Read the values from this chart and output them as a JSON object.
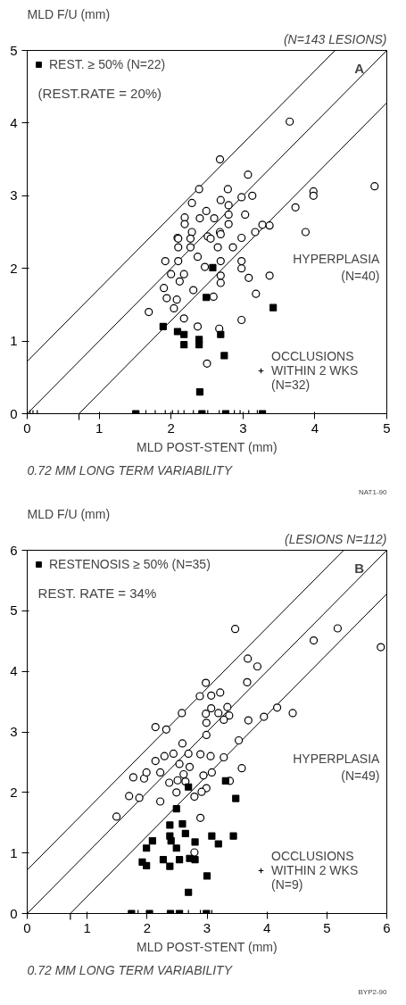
{
  "chart_data": [
    {
      "type": "scatter",
      "title": "A",
      "subtitle": "(N=143 LESIONS)",
      "ylabel": "MLD F/U (mm)",
      "xlabel": "MLD POST-STENT (mm)",
      "xlim": [
        0,
        5
      ],
      "ylim": [
        0,
        5
      ],
      "xticks": [
        0,
        1,
        2,
        3,
        4,
        5
      ],
      "yticks": [
        0,
        1,
        2,
        3,
        4,
        5
      ],
      "grid": false,
      "legend": "top left",
      "annotations": [
        "(REST.RATE = 20%)",
        {
          "text": "0.72 MM LONG TERM VARIABILITY",
          "x": 0.72,
          "y": 0
        },
        "NAT1-90"
      ],
      "series": [
        {
          "type": "line",
          "color": "#000000",
          "x": [
            0,
            4.28
          ],
          "values": [
            0.72,
            5
          ]
        },
        {
          "type": "line",
          "color": "#000000",
          "x": [
            0,
            5
          ],
          "values": [
            0,
            5
          ]
        },
        {
          "type": "line",
          "color": "#000000",
          "x": [
            0.72,
            5
          ],
          "values": [
            0,
            4.28
          ]
        },
        {
          "name": "HYPERPLASIA\n(N=40)",
          "marker": "circle",
          "color": "#000000",
          "x": [
            3.65,
            2.68,
            2.39,
            3.07,
            2.79,
            2.29,
            2.69,
            2.98,
            3.13,
            3.98,
            3.98,
            4.83,
            3.73,
            2.49,
            2.8,
            2.19,
            2.4,
            2.6,
            2.8,
            3.03,
            2.19,
            2.8,
            2.68,
            2.29,
            3.27,
            3.37,
            3.17,
            3.87,
            2.09,
            2.98,
            2.51,
            2.1,
            2.27,
            2.55,
            2.69,
            2.1,
            2.27,
            2.65,
            1.92,
            2.1,
            2.37,
            2.47,
            2.69,
            2.86,
            2.98,
            2.98,
            3.08,
            3.37,
            2.0,
            2.18,
            2.69,
            1.9,
            2.12,
            2.31,
            2.69,
            1.94,
            2.08,
            2.59,
            3.18,
            2.04,
            1.69,
            2.18,
            2.98,
            2.37,
            2.67,
            2.5
          ],
          "values": [
            4.02,
            3.5,
            3.09,
            3.29,
            3.09,
            2.9,
            2.94,
            2.98,
            3.0,
            3.06,
            3.0,
            3.13,
            2.84,
            2.79,
            2.87,
            2.7,
            2.69,
            2.69,
            2.74,
            2.74,
            2.61,
            2.61,
            2.5,
            2.5,
            2.6,
            2.59,
            2.5,
            2.5,
            2.42,
            2.42,
            2.44,
            2.41,
            2.41,
            2.41,
            2.47,
            2.29,
            2.29,
            2.29,
            2.1,
            2.1,
            2.16,
            2.02,
            2.1,
            2.29,
            2.1,
            2.0,
            1.87,
            1.9,
            1.92,
            1.92,
            1.9,
            1.73,
            1.82,
            1.7,
            1.8,
            1.59,
            1.57,
            1.61,
            1.65,
            1.45,
            1.4,
            1.31,
            1.29,
            1.2,
            1.17,
            0.69
          ]
        },
        {
          "name": "REST. ≥ 50% (N=22)",
          "marker": "square",
          "color": "#000000",
          "x": [
            2.49,
            2.58,
            1.89,
            2.09,
            2.18,
            2.18,
            2.39,
            2.39,
            2.69,
            2.74,
            2.4,
            3.42,
            1.51,
            2.43,
            2.76,
            3.27
          ],
          "values": [
            1.6,
            2.01,
            1.2,
            1.13,
            1.09,
            0.95,
            1.02,
            0.95,
            1.09,
            0.8,
            0.3,
            1.46,
            0,
            0,
            0,
            0
          ]
        },
        {
          "name": "OCCLUSIONS\nWITHIN 2 WKS\n(N=32)",
          "marker": "cross",
          "color": "#000000",
          "x": [
            0.04,
            0.08,
            0.14,
            1.65,
            1.78,
            1.92,
            2.02,
            2.1,
            2.18,
            2.31,
            2.51,
            2.67,
            2.88,
            2.96,
            3.08,
            3.2
          ],
          "values": [
            0,
            0,
            0,
            0,
            0,
            0,
            0,
            0,
            0,
            0,
            0,
            0,
            0,
            0,
            0,
            0
          ]
        }
      ]
    },
    {
      "type": "scatter",
      "title": "B",
      "subtitle": "(LESIONS N=112)",
      "ylabel": "MLD F/U (mm)",
      "xlabel": "MLD POST-STENT (mm)",
      "xlim": [
        0,
        6
      ],
      "ylim": [
        0,
        6
      ],
      "xticks": [
        0,
        1,
        2,
        3,
        4,
        5,
        6
      ],
      "yticks": [
        0,
        1,
        2,
        3,
        4,
        5,
        6
      ],
      "grid": false,
      "legend": "top left",
      "annotations": [
        "REST. RATE = 34%",
        {
          "text": "0.72 MM LONG TERM VARIABILITY",
          "x": 0.72,
          "y": 0
        },
        "BYP2-90"
      ],
      "series": [
        {
          "type": "line",
          "color": "#000000",
          "x": [
            0,
            5.28
          ],
          "values": [
            0.72,
            6
          ]
        },
        {
          "type": "line",
          "color": "#000000",
          "x": [
            0,
            6
          ],
          "values": [
            0,
            6
          ]
        },
        {
          "type": "line",
          "color": "#000000",
          "x": [
            0.72,
            6
          ],
          "values": [
            0,
            5.28
          ]
        },
        {
          "name": "HYPERPLASIA\n(N=49)",
          "marker": "circle",
          "color": "#000000",
          "x": [
            3.47,
            4.78,
            5.18,
            5.9,
            3.68,
            3.84,
            3.67,
            2.98,
            2.88,
            3.07,
            3.22,
            2.58,
            2.98,
            3.07,
            3.19,
            3.34,
            3.37,
            3.28,
            3.69,
            3.95,
            4.17,
            4.43,
            2.99,
            2.99,
            2.14,
            2.32,
            3.53,
            2.59,
            2.29,
            2.14,
            2.44,
            2.69,
            2.89,
            3.06,
            3.28,
            3.58,
            1.77,
            1.95,
            1.99,
            2.22,
            2.37,
            2.51,
            2.61,
            2.71,
            2.94,
            3.08,
            3.38,
            2.99,
            2.91,
            2.49,
            2.79,
            1.7,
            1.87,
            2.22,
            1.49,
            2.89,
            2.79,
            2.64,
            2.54
          ],
          "values": [
            4.7,
            4.51,
            4.71,
            4.4,
            4.21,
            4.08,
            3.82,
            3.81,
            3.59,
            3.6,
            3.65,
            3.31,
            3.3,
            3.39,
            3.31,
            3.41,
            3.27,
            3.2,
            3.19,
            3.25,
            3.4,
            3.31,
            3.15,
            2.95,
            3.08,
            3.04,
            2.86,
            2.81,
            2.6,
            2.52,
            2.64,
            2.64,
            2.63,
            2.6,
            2.58,
            2.4,
            2.25,
            2.23,
            2.33,
            2.33,
            2.16,
            2.2,
            2.3,
            2.42,
            2.28,
            2.33,
            2.19,
            2.07,
            2.01,
            2.0,
            1.93,
            1.94,
            1.91,
            1.85,
            1.6,
            1.58,
            1.01,
            2.18,
            2.47
          ]
        },
        {
          "name": "RESTENOSIS ≥ 50% (N=35)",
          "marker": "square",
          "color": "#000000",
          "x": [
            2.49,
            2.38,
            2.59,
            2.38,
            2.64,
            2.4,
            2.49,
            2.09,
            1.99,
            1.92,
            1.99,
            2.27,
            2.38,
            2.54,
            2.71,
            2.8,
            2.8,
            3.08,
            3.19,
            3.44,
            3.31,
            3.48,
            3.0,
            2.69,
            2.69,
            1.74,
            2.04,
            2.39,
            2.54,
            2.99
          ],
          "values": [
            1.73,
            1.46,
            1.48,
            1.28,
            1.32,
            1.2,
            1.08,
            1.2,
            1.08,
            0.85,
            0.79,
            0.89,
            0.78,
            0.89,
            0.91,
            0.89,
            1.18,
            1.28,
            1.15,
            1.28,
            2.19,
            1.9,
            0.62,
            0.35,
            2.09,
            0,
            0,
            0,
            0,
            0
          ]
        },
        {
          "name": "OCCLUSIONS\nWITHIN 2 WKS\n(N=9)",
          "marker": "cross",
          "color": "#000000",
          "x": [
            1.85,
            2.69,
            2.89,
            3.08
          ],
          "values": [
            0,
            0,
            0,
            0
          ]
        }
      ]
    }
  ]
}
